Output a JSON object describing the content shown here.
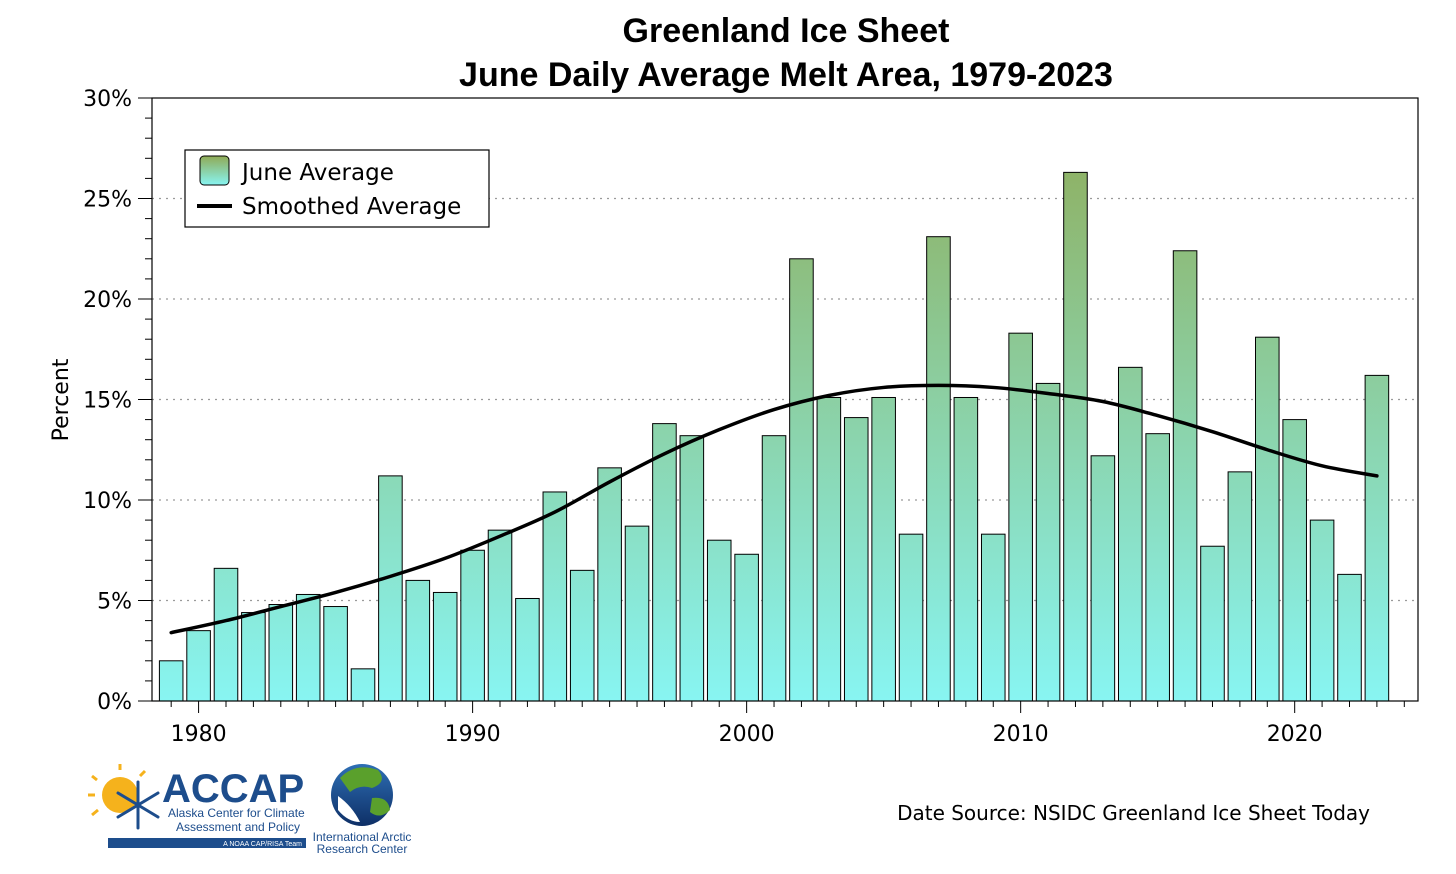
{
  "chart_data": {
    "type": "bar",
    "title": "Greenland Ice Sheet",
    "subtitle": "June Daily Average Melt Area, 1979-2023",
    "ylabel": "Percent",
    "xlabel": "",
    "ylim": [
      0,
      30
    ],
    "xlim": [
      1978.3,
      2024.5
    ],
    "yticks": [
      0,
      5,
      10,
      15,
      20,
      25,
      30
    ],
    "ytick_labels": [
      "0%",
      "5%",
      "10%",
      "15%",
      "20%",
      "25%",
      "30%"
    ],
    "xticks": [
      1980,
      1990,
      2000,
      2010,
      2020
    ],
    "xtick_labels": [
      "1980",
      "1990",
      "2000",
      "2010",
      "2020"
    ],
    "grid": "horizontal dotted",
    "legend_position": "top-left",
    "series": [
      {
        "name": "June Average",
        "type": "bar",
        "x": [
          1979,
          1980,
          1981,
          1982,
          1983,
          1984,
          1985,
          1986,
          1987,
          1988,
          1989,
          1990,
          1991,
          1992,
          1993,
          1994,
          1995,
          1996,
          1997,
          1998,
          1999,
          2000,
          2001,
          2002,
          2003,
          2004,
          2005,
          2006,
          2007,
          2008,
          2009,
          2010,
          2011,
          2012,
          2013,
          2014,
          2015,
          2016,
          2017,
          2018,
          2019,
          2020,
          2021,
          2022,
          2023
        ],
        "values": [
          2.0,
          3.5,
          6.6,
          4.4,
          4.8,
          5.3,
          4.7,
          1.6,
          11.2,
          6.0,
          5.4,
          7.5,
          8.5,
          5.1,
          10.4,
          6.5,
          11.6,
          8.7,
          13.8,
          13.2,
          8.0,
          7.3,
          13.2,
          22.0,
          15.1,
          14.1,
          15.1,
          8.3,
          23.1,
          15.1,
          8.3,
          18.3,
          15.8,
          26.3,
          12.2,
          16.6,
          13.3,
          22.4,
          7.7,
          11.4,
          18.1,
          14.0,
          9.0,
          6.3,
          16.2
        ]
      },
      {
        "name": "Smoothed Average",
        "type": "line",
        "x": [
          1979,
          1981,
          1983,
          1985,
          1987,
          1989,
          1991,
          1993,
          1995,
          1997,
          1999,
          2001,
          2003,
          2005,
          2007,
          2009,
          2011,
          2013,
          2015,
          2017,
          2019,
          2021,
          2023
        ],
        "values": [
          3.4,
          4.0,
          4.7,
          5.4,
          6.2,
          7.1,
          8.2,
          9.4,
          10.9,
          12.3,
          13.5,
          14.5,
          15.2,
          15.6,
          15.7,
          15.6,
          15.3,
          14.9,
          14.2,
          13.4,
          12.5,
          11.7,
          11.2
        ]
      }
    ],
    "colors": {
      "bar_top": "#8faa55",
      "bar_bottom": "#88f5f2",
      "bar_stroke": "#000000",
      "line": "#000000"
    }
  },
  "source_note": "Date Source: NSIDC Greenland Ice Sheet Today",
  "logos": {
    "accap_name": "ACCAP",
    "accap_line1": "Alaska Center for Climate",
    "accap_line2": "Assessment and Policy",
    "accap_tagline": "A NOAA CAP/RISA Team",
    "iarc_line1": "International Arctic",
    "iarc_line2": "Research Center"
  }
}
